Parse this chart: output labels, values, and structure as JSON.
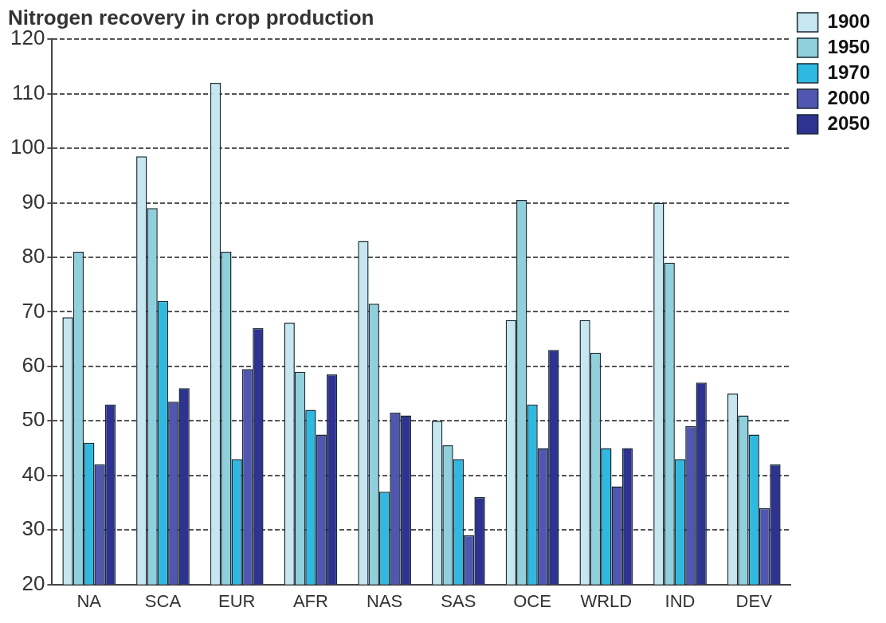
{
  "chart_data": {
    "type": "bar",
    "title": "Nitrogen recovery in crop production",
    "categories": [
      "NA",
      "SCA",
      "EUR",
      "AFR",
      "NAS",
      "SAS",
      "OCE",
      "WRLD",
      "IND",
      "DEV"
    ],
    "series": [
      {
        "name": "1900",
        "color": "#c6e6f0",
        "values": [
          69,
          98.5,
          112,
          68,
          83,
          50,
          68.5,
          68.5,
          90,
          55
        ]
      },
      {
        "name": "1950",
        "color": "#8fd0dc",
        "values": [
          81,
          89,
          81,
          59,
          71.5,
          45.5,
          90.5,
          62.5,
          79,
          51
        ]
      },
      {
        "name": "1970",
        "color": "#2fb8e0",
        "values": [
          46,
          72,
          43,
          52,
          37,
          43,
          53,
          45,
          43,
          47.5
        ]
      },
      {
        "name": "2000",
        "color": "#5057b0",
        "values": [
          42,
          53.5,
          59.5,
          47.5,
          51.5,
          29,
          45,
          38,
          49,
          34
        ]
      },
      {
        "name": "2050",
        "color": "#2e3290",
        "values": [
          53,
          56,
          67,
          58.5,
          51,
          36,
          63,
          45,
          57,
          42
        ]
      }
    ],
    "ylim": [
      20,
      120
    ],
    "yticks": [
      20,
      30,
      40,
      50,
      60,
      70,
      80,
      90,
      100,
      110,
      120
    ],
    "grid": "y",
    "legend": "top right"
  }
}
